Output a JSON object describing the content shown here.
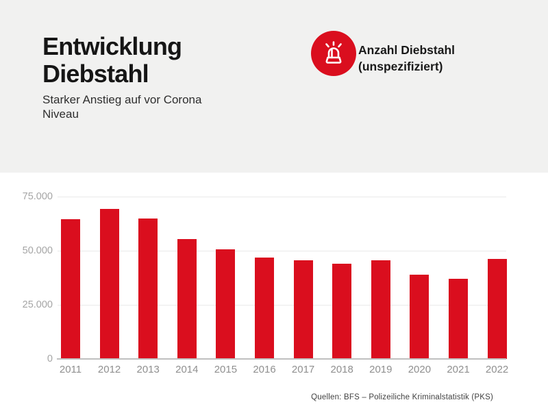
{
  "header": {
    "title": "Entwicklung\nDiebstahl",
    "subtitle": "Starker Anstieg auf vor Corona Niveau"
  },
  "legend": {
    "icon": "siren-icon",
    "label": "Anzahl Diebstahl\n(unspezifiziert)"
  },
  "footer": {
    "source": "Quellen: BFS – Polizeiliche Kriminalstatistik (PKS)"
  },
  "colors": {
    "accent_red": "#da0e1e",
    "header_bg": "#f1f1f0",
    "gridline": "#eaeaea",
    "baseline": "#bfbfbf",
    "axis_label_gray": "#a5a5a5"
  },
  "chart_data": {
    "type": "bar",
    "title": "Anzahl Diebstahl (unspezifiziert)",
    "categories": [
      "2011",
      "2012",
      "2013",
      "2014",
      "2015",
      "2016",
      "2017",
      "2018",
      "2019",
      "2020",
      "2021",
      "2022"
    ],
    "values": [
      64600,
      69300,
      64800,
      55400,
      50600,
      46800,
      45600,
      43900,
      45700,
      38900,
      37100,
      46100
    ],
    "bar_color": "#da0e1e",
    "xlabel": "",
    "ylabel": "",
    "ylim": [
      0,
      75000
    ],
    "yticks": [
      0,
      25000,
      50000,
      75000
    ],
    "ytick_labels": [
      "0",
      "25.000",
      "50.000",
      "75.000"
    ],
    "grid": true,
    "legend_position": "top-right"
  }
}
